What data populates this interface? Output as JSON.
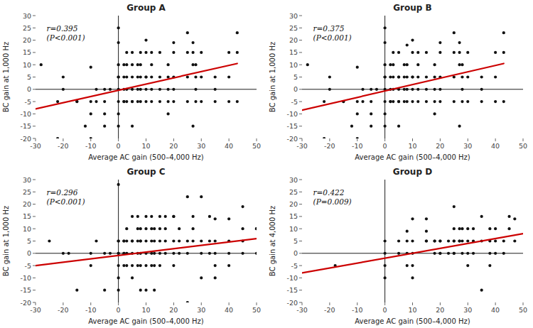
{
  "chart_data": [
    {
      "type": "scatter",
      "title": "Group A",
      "x_label": "Average AC gain (500–4,000 Hz)",
      "y_label": "BC gain at 1,000 Hz",
      "annotations": [
        "r=0.395",
        "(P<0.001)"
      ],
      "xlim": [
        -30,
        50
      ],
      "ylim": [
        -20,
        30
      ],
      "xticks": [
        -30,
        -20,
        -10,
        0,
        10,
        20,
        30,
        40,
        50
      ],
      "yticks": [
        -20,
        -15,
        -10,
        -5,
        0,
        5,
        10,
        15,
        20,
        25,
        30
      ],
      "series": [
        {
          "type": "scatter",
          "color": "#111111",
          "x": [
            -28,
            -22,
            -22,
            -20,
            -20,
            -15,
            -15,
            -12,
            -10,
            -10,
            -10,
            -10,
            -8,
            -8,
            -5,
            -5,
            -5,
            -5,
            -3,
            0,
            0,
            0,
            0,
            0,
            0,
            0,
            0,
            0,
            2,
            2,
            2,
            2,
            2,
            3,
            3,
            3,
            3,
            3,
            5,
            5,
            5,
            5,
            5,
            5,
            5,
            7,
            7,
            7,
            7,
            8,
            8,
            8,
            8,
            8,
            10,
            10,
            10,
            10,
            10,
            10,
            12,
            12,
            12,
            12,
            12,
            15,
            15,
            15,
            15,
            18,
            18,
            18,
            18,
            18,
            20,
            20,
            20,
            20,
            20,
            25,
            25,
            25,
            25,
            27,
            27,
            27,
            27,
            28,
            28,
            28,
            28,
            30,
            30,
            30,
            35,
            35,
            35,
            40,
            40,
            40,
            43,
            43,
            43
          ],
          "values": [
            10,
            -5,
            -20,
            5,
            0,
            -5,
            -5,
            -15,
            -5,
            9,
            -10,
            -20,
            0,
            -5,
            0,
            -5,
            -10,
            -15,
            0,
            25,
            19,
            10,
            5,
            5,
            0,
            -5,
            -10,
            -15,
            10,
            5,
            0,
            -5,
            -5,
            15,
            10,
            5,
            0,
            -5,
            15,
            10,
            5,
            0,
            -5,
            -5,
            -15,
            10,
            5,
            0,
            -5,
            15,
            10,
            5,
            0,
            -5,
            20,
            15,
            5,
            5,
            0,
            -5,
            15,
            10,
            5,
            0,
            -5,
            15,
            5,
            0,
            -5,
            10,
            5,
            0,
            -5,
            -10,
            19,
            15,
            5,
            0,
            -5,
            23,
            15,
            5,
            -5,
            19,
            15,
            10,
            -15,
            10,
            5,
            0,
            -5,
            15,
            5,
            -5,
            5,
            0,
            -5,
            15,
            5,
            -5,
            23,
            15,
            -5
          ]
        },
        {
          "type": "line",
          "color": "#cc0000",
          "x": [
            -30,
            43
          ],
          "values": [
            -8.0,
            10.5
          ]
        }
      ]
    },
    {
      "type": "scatter",
      "title": "Group B",
      "x_label": "Average AC gain (500–4,000 Hz)",
      "y_label": "BC gain at 1,000 Hz",
      "annotations": [
        "r=0.375",
        "(P<0.001)"
      ],
      "xlim": [
        -30,
        50
      ],
      "ylim": [
        -20,
        30
      ],
      "xticks": [
        -30,
        -20,
        -10,
        0,
        10,
        20,
        30,
        40,
        50
      ],
      "yticks": [
        -20,
        -15,
        -10,
        -5,
        0,
        5,
        10,
        15,
        20,
        25,
        30
      ],
      "series": [
        {
          "type": "scatter",
          "color": "#111111",
          "x": [
            -28,
            -22,
            -22,
            -20,
            -20,
            -15,
            -15,
            -12,
            -10,
            -10,
            -10,
            -10,
            -8,
            -8,
            -5,
            -5,
            -5,
            -5,
            -3,
            0,
            0,
            0,
            0,
            0,
            0,
            0,
            0,
            0,
            2,
            2,
            2,
            2,
            2,
            3,
            3,
            3,
            3,
            3,
            5,
            5,
            5,
            5,
            5,
            5,
            5,
            7,
            7,
            7,
            7,
            8,
            8,
            8,
            8,
            8,
            10,
            10,
            10,
            10,
            10,
            10,
            12,
            12,
            12,
            12,
            12,
            15,
            15,
            15,
            15,
            18,
            18,
            18,
            18,
            18,
            20,
            20,
            20,
            20,
            20,
            25,
            25,
            25,
            25,
            27,
            27,
            27,
            27,
            28,
            28,
            28,
            28,
            30,
            30,
            30,
            35,
            35,
            35,
            40,
            40,
            40,
            43,
            43,
            43
          ],
          "values": [
            10,
            -5,
            -20,
            5,
            0,
            -5,
            -5,
            -15,
            -5,
            9,
            -10,
            -20,
            0,
            -5,
            0,
            -5,
            -10,
            -15,
            0,
            25,
            19,
            10,
            5,
            5,
            0,
            -5,
            -10,
            -15,
            10,
            5,
            0,
            -5,
            -5,
            15,
            10,
            5,
            0,
            -5,
            15,
            5,
            5,
            0,
            -5,
            -5,
            -15,
            10,
            5,
            0,
            -5,
            18,
            10,
            5,
            0,
            -5,
            20,
            15,
            5,
            5,
            0,
            -5,
            15,
            10,
            5,
            0,
            -5,
            15,
            5,
            0,
            -5,
            10,
            5,
            0,
            -5,
            -10,
            19,
            15,
            5,
            0,
            -5,
            23,
            15,
            5,
            -5,
            19,
            15,
            10,
            -15,
            10,
            5,
            0,
            -5,
            15,
            5,
            -5,
            5,
            0,
            -5,
            15,
            5,
            -5,
            23,
            15,
            -5
          ]
        },
        {
          "type": "line",
          "color": "#cc0000",
          "x": [
            -30,
            43
          ],
          "values": [
            -8.5,
            10.5
          ]
        }
      ]
    },
    {
      "type": "scatter",
      "title": "Group C",
      "x_label": "Average AC gain (500–4,000 Hz)",
      "y_label": "BC gain at 1,000 Hz",
      "annotations": [
        "r=0.296",
        "(P<0.001)"
      ],
      "xlim": [
        -30,
        50
      ],
      "ylim": [
        -20,
        30
      ],
      "xticks": [
        -30,
        -20,
        -10,
        0,
        10,
        20,
        30,
        40,
        50
      ],
      "yticks": [
        -20,
        -15,
        -10,
        -5,
        0,
        5,
        10,
        15,
        20,
        25,
        30
      ],
      "series": [
        {
          "type": "scatter",
          "color": "#111111",
          "x": [
            -25,
            -20,
            -18,
            -15,
            -10,
            -10,
            -8,
            -5,
            -5,
            -3,
            0,
            0,
            0,
            0,
            0,
            0,
            0,
            0,
            2,
            2,
            2,
            2,
            2,
            3,
            3,
            3,
            3,
            5,
            5,
            5,
            5,
            5,
            5,
            7,
            7,
            7,
            7,
            7,
            8,
            8,
            8,
            8,
            8,
            8,
            10,
            10,
            10,
            10,
            10,
            10,
            12,
            12,
            12,
            12,
            12,
            13,
            13,
            13,
            13,
            13,
            15,
            15,
            15,
            15,
            15,
            17,
            17,
            17,
            17,
            20,
            20,
            20,
            20,
            20,
            22,
            22,
            22,
            25,
            25,
            25,
            25,
            27,
            27,
            27,
            30,
            30,
            30,
            30,
            33,
            33,
            33,
            35,
            35,
            35,
            35,
            35,
            40,
            40,
            40,
            40,
            45,
            45,
            45,
            45,
            50,
            50,
            50
          ],
          "values": [
            5,
            0,
            0,
            -15,
            0,
            -5,
            5,
            0,
            -15,
            0,
            28,
            5,
            5,
            0,
            0,
            -5,
            -10,
            -15,
            5,
            5,
            0,
            0,
            -5,
            10,
            5,
            0,
            -5,
            15,
            5,
            5,
            0,
            -5,
            -10,
            15,
            10,
            5,
            0,
            -5,
            10,
            5,
            5,
            0,
            -5,
            -15,
            15,
            10,
            5,
            0,
            -5,
            -15,
            15,
            10,
            5,
            0,
            -5,
            10,
            5,
            0,
            -5,
            -15,
            15,
            10,
            5,
            0,
            -5,
            15,
            10,
            5,
            0,
            15,
            15,
            5,
            0,
            -5,
            10,
            5,
            0,
            23,
            5,
            0,
            -20,
            15,
            10,
            5,
            23,
            5,
            0,
            -10,
            15,
            5,
            0,
            14,
            5,
            0,
            -5,
            -10,
            14,
            5,
            0,
            -5,
            19,
            10,
            5,
            0,
            10,
            10,
            0
          ]
        },
        {
          "type": "line",
          "color": "#cc0000",
          "x": [
            -30,
            50
          ],
          "values": [
            -5.0,
            6.0
          ]
        }
      ]
    },
    {
      "type": "scatter",
      "title": "Group D",
      "x_label": "Average AC gain (500–4,000 Hz)",
      "y_label": "BC gain at 4,000 Hz",
      "annotations": [
        "r=0.422",
        "(P=0.009)"
      ],
      "xlim": [
        -30,
        50
      ],
      "ylim": [
        -20,
        30
      ],
      "xticks": [
        -30,
        -20,
        -10,
        0,
        10,
        20,
        30,
        40,
        50
      ],
      "yticks": [
        -20,
        -15,
        -10,
        -5,
        0,
        5,
        10,
        15,
        20,
        25,
        30
      ],
      "series": [
        {
          "type": "scatter",
          "color": "#111111",
          "x": [
            -18,
            0,
            0,
            0,
            0,
            5,
            5,
            8,
            8,
            8,
            8,
            10,
            10,
            10,
            10,
            10,
            15,
            15,
            15,
            15,
            18,
            18,
            18,
            20,
            20,
            20,
            20,
            23,
            23,
            25,
            25,
            25,
            25,
            25,
            25,
            27,
            27,
            27,
            28,
            28,
            28,
            30,
            30,
            30,
            30,
            32,
            32,
            32,
            35,
            35,
            35,
            38,
            38,
            38,
            38,
            40,
            40,
            40,
            43,
            43,
            45,
            45,
            47,
            47
          ],
          "values": [
            -5,
            5,
            0,
            -5,
            -10,
            5,
            0,
            9,
            5,
            0,
            -5,
            14,
            5,
            0,
            -5,
            -10,
            14,
            9,
            5,
            5,
            5,
            5,
            0,
            5,
            5,
            0,
            0,
            5,
            0,
            19,
            10,
            5,
            5,
            0,
            0,
            10,
            5,
            5,
            10,
            5,
            0,
            10,
            5,
            0,
            -5,
            10,
            5,
            0,
            15,
            5,
            -15,
            10,
            5,
            0,
            -5,
            10,
            5,
            0,
            5,
            0,
            15,
            10,
            14,
            5
          ]
        },
        {
          "type": "line",
          "color": "#cc0000",
          "x": [
            -30,
            50
          ],
          "values": [
            -8.0,
            8.0
          ]
        }
      ]
    }
  ]
}
